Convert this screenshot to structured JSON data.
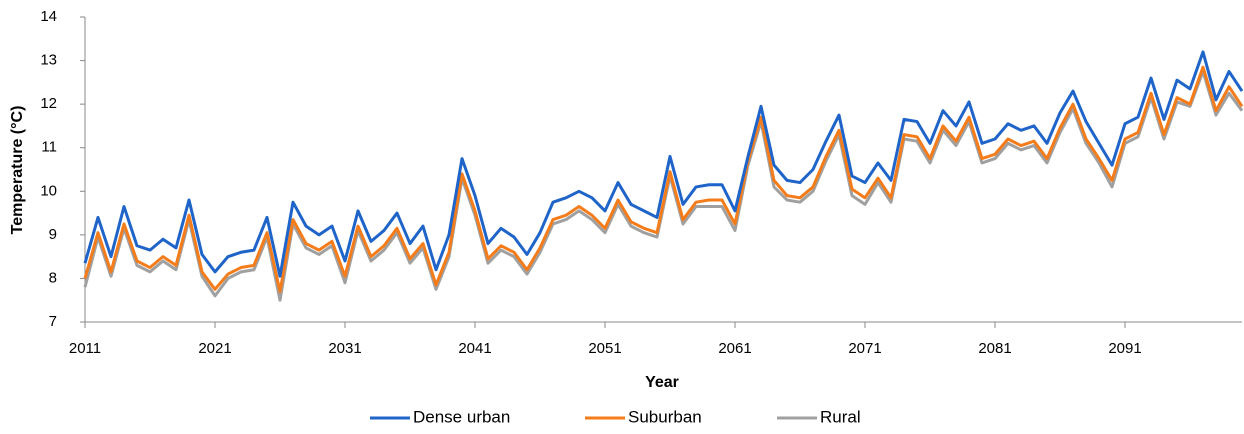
{
  "chart_data": {
    "type": "line",
    "x_label": "Year",
    "y_label": "Temperature (°C)",
    "x": [
      2011,
      2012,
      2013,
      2014,
      2015,
      2016,
      2017,
      2018,
      2019,
      2020,
      2021,
      2022,
      2023,
      2024,
      2025,
      2026,
      2027,
      2028,
      2029,
      2030,
      2031,
      2032,
      2033,
      2034,
      2035,
      2036,
      2037,
      2038,
      2039,
      2040,
      2041,
      2042,
      2043,
      2044,
      2045,
      2046,
      2047,
      2048,
      2049,
      2050,
      2051,
      2052,
      2053,
      2054,
      2055,
      2056,
      2057,
      2058,
      2059,
      2060,
      2061,
      2062,
      2063,
      2064,
      2065,
      2066,
      2067,
      2068,
      2069,
      2070,
      2071,
      2072,
      2073,
      2074,
      2075,
      2076,
      2077,
      2078,
      2079,
      2080,
      2081,
      2082,
      2083,
      2084,
      2085,
      2086,
      2087,
      2088,
      2089,
      2090,
      2091,
      2092,
      2093,
      2094,
      2095,
      2096,
      2097,
      2098,
      2099,
      2100
    ],
    "series": [
      {
        "name": "Dense urban",
        "color": "#1f64c8",
        "values": [
          8.35,
          9.4,
          8.5,
          9.65,
          8.75,
          8.65,
          8.9,
          8.7,
          9.8,
          8.55,
          8.15,
          8.5,
          8.6,
          8.65,
          9.4,
          8.05,
          9.75,
          9.2,
          9.0,
          9.2,
          8.4,
          9.55,
          8.85,
          9.1,
          9.5,
          8.8,
          9.2,
          8.2,
          9.0,
          10.75,
          9.9,
          8.8,
          9.15,
          8.95,
          8.55,
          9.05,
          9.75,
          9.85,
          10.0,
          9.85,
          9.55,
          10.2,
          9.7,
          9.55,
          9.4,
          10.8,
          9.7,
          10.1,
          10.15,
          10.15,
          9.55,
          10.8,
          11.95,
          10.6,
          10.25,
          10.2,
          10.5,
          11.15,
          11.75,
          10.35,
          10.2,
          10.65,
          10.25,
          11.65,
          11.6,
          11.1,
          11.85,
          11.5,
          12.05,
          11.1,
          11.2,
          11.55,
          11.4,
          11.5,
          11.1,
          11.8,
          12.3,
          11.6,
          11.1,
          10.6,
          11.55,
          11.7,
          12.6,
          11.65,
          12.55,
          12.35,
          13.2,
          12.1,
          12.75,
          12.3
        ]
      },
      {
        "name": "Suburban",
        "color": "#f47c1a",
        "values": [
          8.0,
          9.05,
          8.15,
          9.25,
          8.4,
          8.25,
          8.5,
          8.3,
          9.45,
          8.15,
          7.75,
          8.1,
          8.25,
          8.3,
          9.05,
          7.7,
          9.35,
          8.8,
          8.65,
          8.85,
          8.05,
          9.2,
          8.5,
          8.75,
          9.15,
          8.45,
          8.8,
          7.85,
          8.6,
          10.4,
          9.55,
          8.45,
          8.75,
          8.6,
          8.2,
          8.7,
          9.35,
          9.45,
          9.65,
          9.45,
          9.15,
          9.8,
          9.3,
          9.15,
          9.05,
          10.45,
          9.35,
          9.75,
          9.8,
          9.8,
          9.25,
          10.7,
          11.7,
          10.25,
          9.9,
          9.85,
          10.1,
          10.8,
          11.4,
          10.05,
          9.85,
          10.3,
          9.85,
          11.3,
          11.25,
          10.75,
          11.5,
          11.15,
          11.7,
          10.75,
          10.85,
          11.2,
          11.05,
          11.15,
          10.75,
          11.45,
          12.0,
          11.2,
          10.75,
          10.25,
          11.2,
          11.35,
          12.25,
          11.3,
          12.15,
          12.0,
          12.85,
          11.85,
          12.4,
          11.95
        ]
      },
      {
        "name": "Rural",
        "color": "#a0a0a0",
        "values": [
          7.8,
          8.95,
          8.05,
          9.15,
          8.3,
          8.15,
          8.4,
          8.2,
          9.35,
          8.05,
          7.6,
          8.0,
          8.15,
          8.2,
          8.95,
          7.5,
          9.25,
          8.7,
          8.55,
          8.75,
          7.9,
          9.1,
          8.4,
          8.65,
          9.05,
          8.35,
          8.7,
          7.75,
          8.5,
          10.3,
          9.45,
          8.35,
          8.65,
          8.5,
          8.1,
          8.6,
          9.25,
          9.35,
          9.55,
          9.35,
          9.05,
          9.7,
          9.2,
          9.05,
          8.95,
          10.35,
          9.25,
          9.65,
          9.65,
          9.65,
          9.1,
          10.6,
          11.6,
          10.1,
          9.8,
          9.75,
          10.0,
          10.7,
          11.3,
          9.9,
          9.7,
          10.2,
          9.75,
          11.2,
          11.15,
          10.65,
          11.4,
          11.05,
          11.6,
          10.65,
          10.75,
          11.1,
          10.95,
          11.05,
          10.65,
          11.35,
          11.9,
          11.1,
          10.65,
          10.1,
          11.1,
          11.25,
          12.15,
          11.2,
          12.05,
          11.95,
          12.75,
          11.75,
          12.25,
          11.85
        ]
      }
    ],
    "xlim": [
      2011,
      2100
    ],
    "xticks": [
      2011,
      2021,
      2031,
      2041,
      2051,
      2061,
      2071,
      2081,
      2091
    ],
    "ylim": [
      7,
      14
    ],
    "yticks": [
      7,
      8,
      9,
      10,
      11,
      12,
      13,
      14
    ],
    "grid": false,
    "legend": "bottom"
  }
}
